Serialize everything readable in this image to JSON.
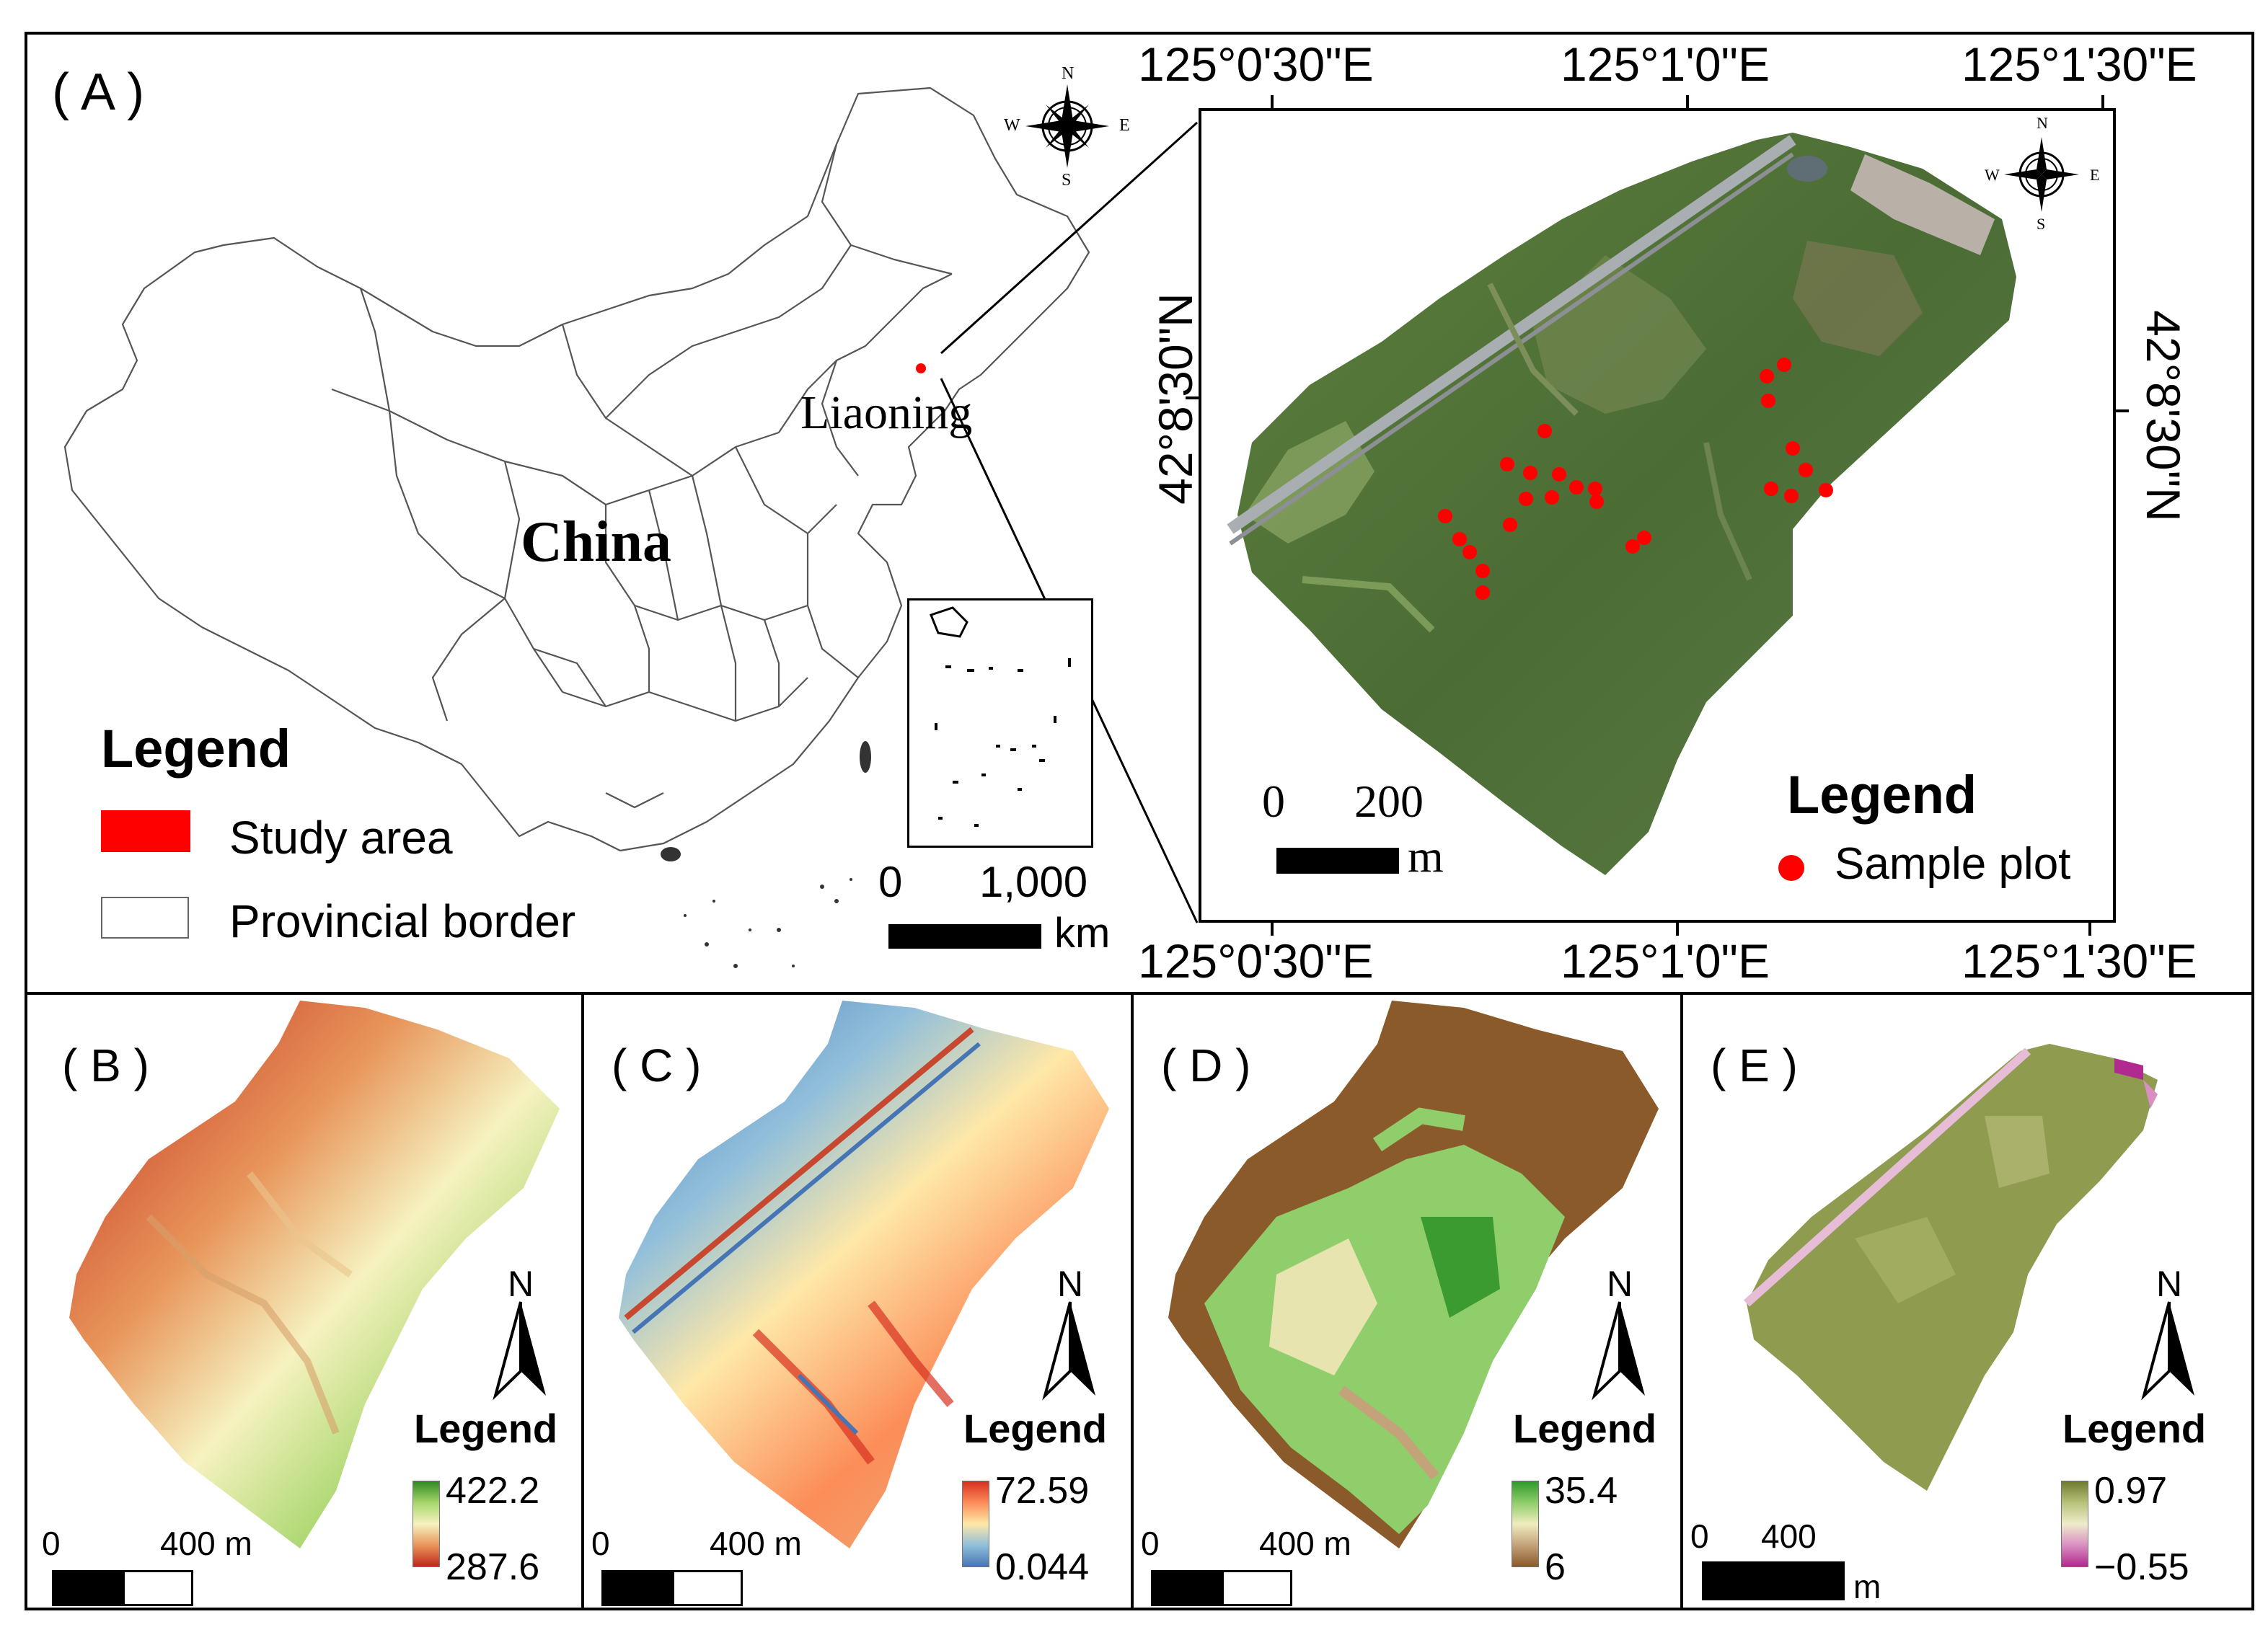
{
  "panel_a": {
    "label": "( A )",
    "country_label": "China",
    "province_label": "Liaoning",
    "legend": {
      "title": "Legend",
      "items": [
        {
          "label": "Study area",
          "color": "#ff0000"
        },
        {
          "label": "Provincial border",
          "color": "#ffffff"
        }
      ]
    },
    "scale": {
      "start": "0",
      "end": "1,000",
      "unit": "km"
    },
    "compass": {
      "n": "N",
      "s": "S",
      "e": "E",
      "w": "W"
    },
    "inset": {
      "lon_labels_top": [
        "125°0'30\"E",
        "125°1'0\"E",
        "125°1'30\"E"
      ],
      "lon_labels_bottom": [
        "125°0'30\"E",
        "125°1'0\"E",
        "125°1'30\"E"
      ],
      "lat_label_left": "42°8'30\"N",
      "lat_label_right": "42°8'30\"N",
      "scale": {
        "start": "0",
        "end": "200",
        "unit": "m"
      },
      "legend": {
        "title": "Legend",
        "items": [
          {
            "label": "Sample plot",
            "color": "#ff0000"
          }
        ]
      },
      "sample_plot_count": 25
    }
  },
  "panels": [
    {
      "label": "( B )",
      "legend_title": "Legend",
      "north": "N",
      "max": "422.2",
      "min": "287.6",
      "scale": {
        "start": "0",
        "end": "400 m",
        "unit": ""
      },
      "colors": [
        "#2e8b22",
        "#a7d66b",
        "#f6f2c0",
        "#e8955a",
        "#c0281d"
      ]
    },
    {
      "label": "( C )",
      "legend_title": "Legend",
      "north": "N",
      "max": "72.59",
      "min": "0.044",
      "scale": {
        "start": "0",
        "end": "400 m",
        "unit": ""
      },
      "colors": [
        "#d7301f",
        "#fc8d59",
        "#fee8a8",
        "#91bfdb",
        "#4575b4"
      ]
    },
    {
      "label": "( D )",
      "legend_title": "Legend",
      "north": "N",
      "max": "35.4",
      "min": "6",
      "scale": {
        "start": "0",
        "end": "400 m",
        "unit": ""
      },
      "colors": [
        "#2e9a2a",
        "#8fce6a",
        "#f0ecc0",
        "#c4a27a",
        "#8b5a2b"
      ]
    },
    {
      "label": "( E )",
      "legend_title": "Legend",
      "north": "N",
      "max": "0.97",
      "min": "−0.55",
      "scale": {
        "start": "0",
        "end": "400",
        "unit": "m"
      },
      "colors": [
        "#6f7a2e",
        "#b9c27a",
        "#efeccb",
        "#d98fc2",
        "#b02a8f"
      ]
    }
  ]
}
